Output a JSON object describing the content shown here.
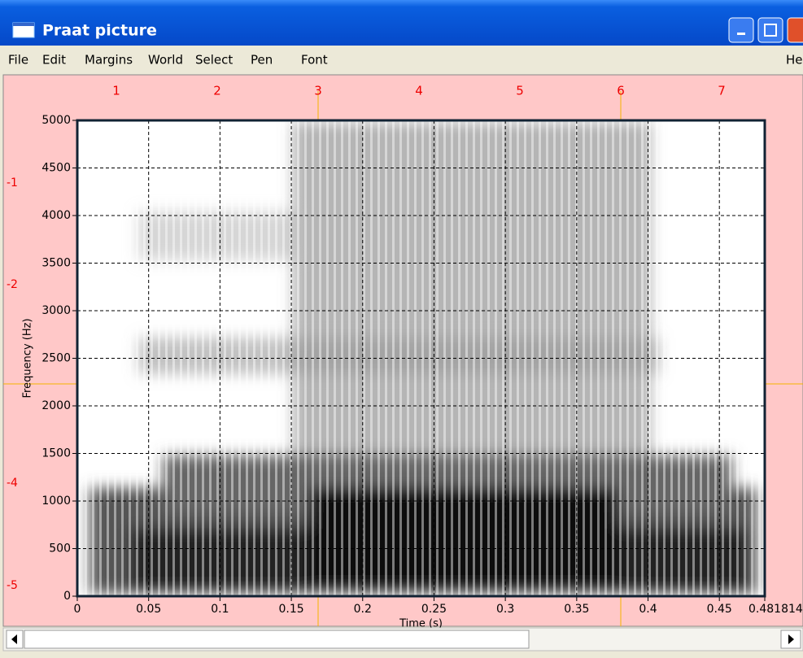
{
  "window": {
    "title": "Praat picture",
    "menu": [
      "File",
      "Edit",
      "Margins",
      "World",
      "Select",
      "Pen",
      "Font"
    ],
    "help": "He"
  },
  "ruler": {
    "top": [
      "1",
      "2",
      "3",
      "4",
      "5",
      "6",
      "7"
    ],
    "left": [
      "-1",
      "-2",
      "-4",
      "-5"
    ]
  },
  "chart_data": {
    "type": "spectrogram",
    "xlabel": "Time (s)",
    "ylabel": "Frequency (Hz)",
    "xlim": [
      0,
      0.481814
    ],
    "ylim": [
      0,
      5000
    ],
    "xticks": [
      0,
      0.05,
      0.1,
      0.15,
      0.2,
      0.25,
      0.3,
      0.35,
      0.4,
      0.45,
      0.481814
    ],
    "yticks": [
      0,
      500,
      1000,
      1500,
      2000,
      2500,
      3000,
      3500,
      4000,
      4500,
      5000
    ],
    "grid": true
  }
}
